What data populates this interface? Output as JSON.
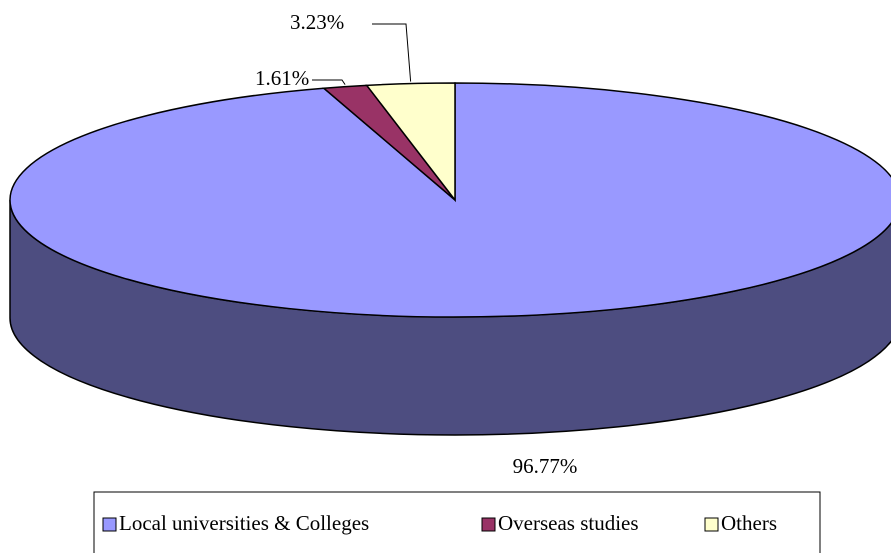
{
  "chart_data": {
    "type": "pie3d",
    "categories": [
      "Local universities & Colleges",
      "Overseas studies",
      "Others"
    ],
    "values": [
      96.77,
      1.61,
      3.23
    ],
    "value_labels": [
      "96.77%",
      "1.61%",
      "3.23%"
    ],
    "colors": [
      "#9999ff",
      "#993366",
      "#ffffcc"
    ],
    "side_color": "#4d4d80",
    "legend": "bottom"
  }
}
